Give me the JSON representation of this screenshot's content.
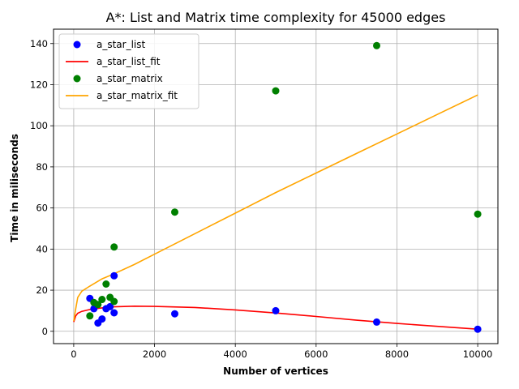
{
  "chart_data": {
    "type": "scatter",
    "title": "A*: List and Matrix time complexity for 45000 edges",
    "xlabel": "Number of vertices",
    "ylabel": "Time in miliseconds",
    "xlim": [
      -500,
      10500
    ],
    "ylim": [
      -6,
      147
    ],
    "xticks": [
      0,
      2000,
      4000,
      6000,
      8000,
      10000
    ],
    "yticks": [
      0,
      20,
      40,
      60,
      80,
      100,
      120,
      140
    ],
    "grid": true,
    "legend_position": "top-left",
    "series": [
      {
        "name": "a_star_list",
        "kind": "scatter",
        "color": "#0000ff",
        "points": [
          [
            400,
            16
          ],
          [
            500,
            11
          ],
          [
            600,
            4
          ],
          [
            700,
            6
          ],
          [
            800,
            11
          ],
          [
            900,
            12
          ],
          [
            1000,
            27
          ],
          [
            1000,
            9
          ],
          [
            2500,
            8.5
          ],
          [
            5000,
            10
          ],
          [
            7500,
            4.5
          ],
          [
            10000,
            1
          ]
        ]
      },
      {
        "name": "a_star_list_fit",
        "kind": "line",
        "color": "#ff0000",
        "points": [
          [
            0,
            4.5
          ],
          [
            50,
            7.5
          ],
          [
            100,
            8.8
          ],
          [
            200,
            9.7
          ],
          [
            400,
            10.6
          ],
          [
            700,
            11.4
          ],
          [
            1000,
            11.9
          ],
          [
            1500,
            12.2
          ],
          [
            2000,
            12.1
          ],
          [
            3000,
            11.6
          ],
          [
            4000,
            10.4
          ],
          [
            5000,
            8.9
          ],
          [
            6000,
            7.2
          ],
          [
            7000,
            5.4
          ],
          [
            8000,
            3.8
          ],
          [
            9000,
            2.4
          ],
          [
            10000,
            1.0
          ]
        ]
      },
      {
        "name": "a_star_matrix",
        "kind": "scatter",
        "color": "#008000",
        "points": [
          [
            400,
            7.5
          ],
          [
            500,
            14
          ],
          [
            600,
            13
          ],
          [
            700,
            15.5
          ],
          [
            800,
            23
          ],
          [
            900,
            16.5
          ],
          [
            1000,
            41
          ],
          [
            1000,
            14.5
          ],
          [
            2500,
            58
          ],
          [
            5000,
            117
          ],
          [
            7500,
            139
          ],
          [
            10000,
            57
          ]
        ]
      },
      {
        "name": "a_star_matrix_fit",
        "kind": "line",
        "color": "#ffa500",
        "points": [
          [
            0,
            5
          ],
          [
            50,
            11
          ],
          [
            100,
            16.5
          ],
          [
            200,
            19.5
          ],
          [
            400,
            22
          ],
          [
            700,
            25.5
          ],
          [
            1000,
            28
          ],
          [
            1500,
            32.5
          ],
          [
            2000,
            37.5
          ],
          [
            3000,
            47.5
          ],
          [
            4000,
            57.5
          ],
          [
            5000,
            67.5
          ],
          [
            6000,
            77
          ],
          [
            7000,
            86.5
          ],
          [
            8000,
            96
          ],
          [
            9000,
            105.5
          ],
          [
            10000,
            115
          ]
        ]
      }
    ]
  }
}
